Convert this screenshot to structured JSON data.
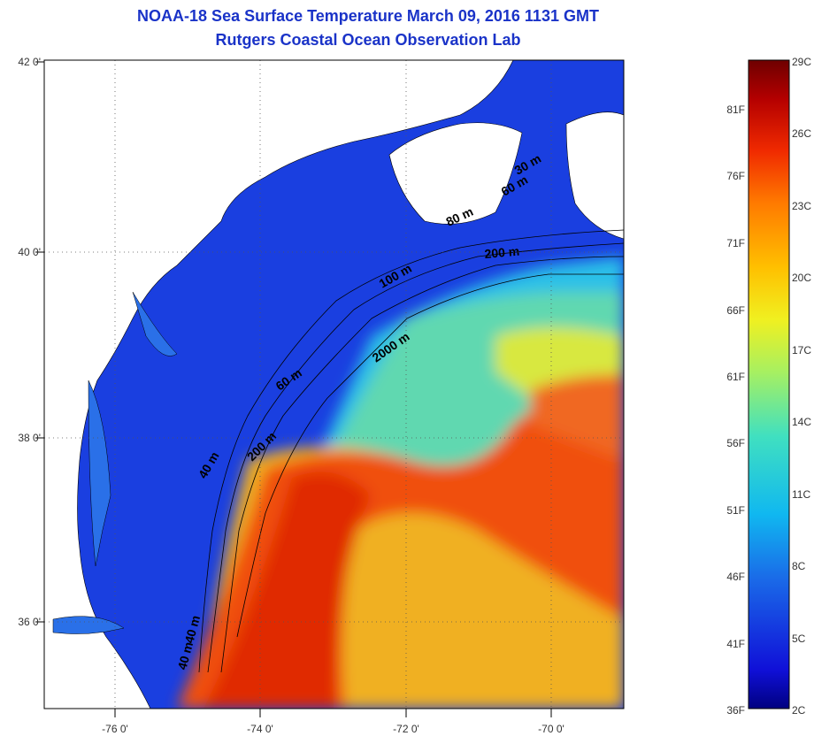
{
  "title": {
    "line1": "NOAA-18 Sea Surface Temperature March 09, 2016 1131 GMT",
    "line2": "Rutgers Coastal Ocean Observation Lab"
  },
  "map": {
    "lat_labels": [
      "42 0'",
      "40 0'",
      "38 0'",
      "36 0'"
    ],
    "lon_labels": [
      "-76 0'",
      "-74 0'",
      "-72 0'",
      "-70 0'"
    ],
    "contours": [
      "40 m",
      "40 m",
      "40 m",
      "60 m",
      "60 m",
      "80 m",
      "100 m",
      "200 m",
      "200 m",
      "2000 m",
      "30 m"
    ]
  },
  "colorbar": {
    "fahrenheit": [
      "81F",
      "76F",
      "71F",
      "66F",
      "61F",
      "56F",
      "51F",
      "46F",
      "41F",
      "36F"
    ],
    "celsius": [
      "29C",
      "26C",
      "23C",
      "20C",
      "17C",
      "14C",
      "11C",
      "8C",
      "5C",
      "2C"
    ],
    "colors": [
      "#6e0000",
      "#b40000",
      "#f02a00",
      "#ff7a00",
      "#ffc000",
      "#f0f020",
      "#a8f060",
      "#40e0c0",
      "#10b8f0",
      "#1a6ae8",
      "#1010d8",
      "#000080"
    ]
  }
}
